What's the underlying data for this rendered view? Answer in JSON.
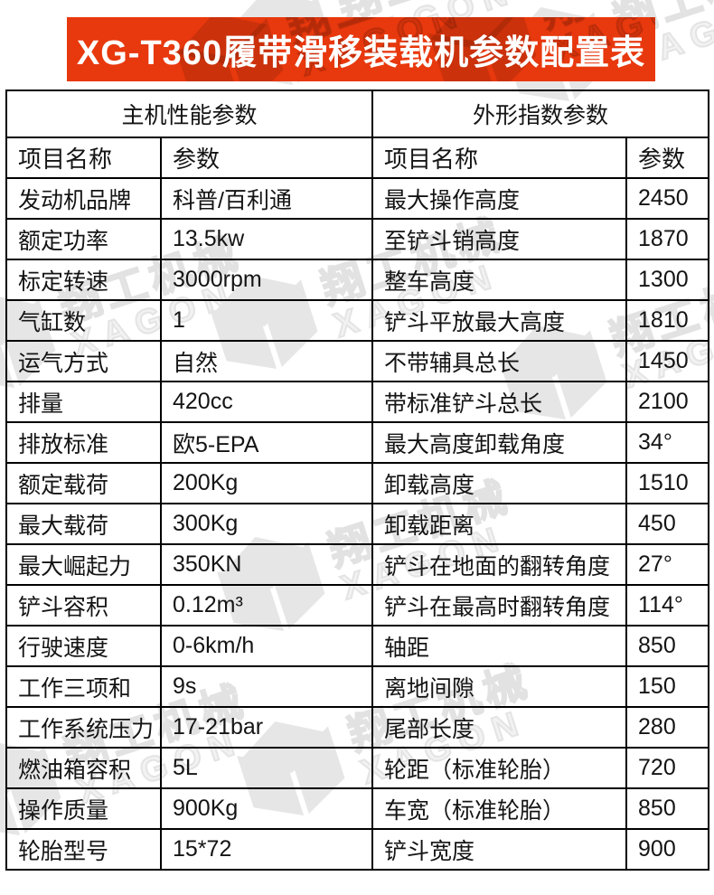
{
  "title": "XG-T360履带滑移装载机参数配置表",
  "watermark": {
    "cn": "翔工机械",
    "en": "XAGON"
  },
  "colors": {
    "banner_red": "#e8380d",
    "table_border": "#000000",
    "watermark_gray": "#e4e4e4"
  },
  "table": {
    "group_headers": {
      "left": "主机性能参数",
      "right": "外形指数参数"
    },
    "columns": [
      "项目名称",
      "参数",
      "项目名称",
      "参数"
    ],
    "rows": [
      [
        "发动机品牌",
        "科普/百利通",
        "最大操作高度",
        "2450"
      ],
      [
        "额定功率",
        "13.5kw",
        "至铲斗销高度",
        "1870"
      ],
      [
        "标定转速",
        "3000rpm",
        "整车高度",
        "1300"
      ],
      [
        "气缸数",
        "1",
        "铲斗平放最大高度",
        "1810"
      ],
      [
        "运气方式",
        "自然",
        "不带辅具总长",
        "1450"
      ],
      [
        "排量",
        "420cc",
        "带标准铲斗总长",
        "2100"
      ],
      [
        "排放标准",
        "欧5-EPA",
        "最大高度卸载角度",
        "34°"
      ],
      [
        "额定载荷",
        "200Kg",
        "卸载高度",
        "1510"
      ],
      [
        "最大载荷",
        "300Kg",
        "卸载距离",
        "450"
      ],
      [
        "最大崛起力",
        "350KN",
        "铲斗在地面的翻转角度",
        "27°"
      ],
      [
        "铲斗容积",
        "0.12m³",
        "铲斗在最高时翻转角度",
        "114°"
      ],
      [
        "行驶速度",
        "0-6km/h",
        "轴距",
        "850"
      ],
      [
        "工作三项和",
        "9s",
        "离地间隙",
        "150"
      ],
      [
        "工作系统压力",
        "17-21bar",
        "尾部长度",
        "280"
      ],
      [
        "燃油箱容积",
        "5L",
        "轮距（标准轮胎）",
        "720"
      ],
      [
        "操作质量",
        "900Kg",
        "车宽（标准轮胎）",
        "850"
      ],
      [
        "轮胎型号",
        "15*72",
        "铲斗宽度",
        "900"
      ]
    ]
  }
}
